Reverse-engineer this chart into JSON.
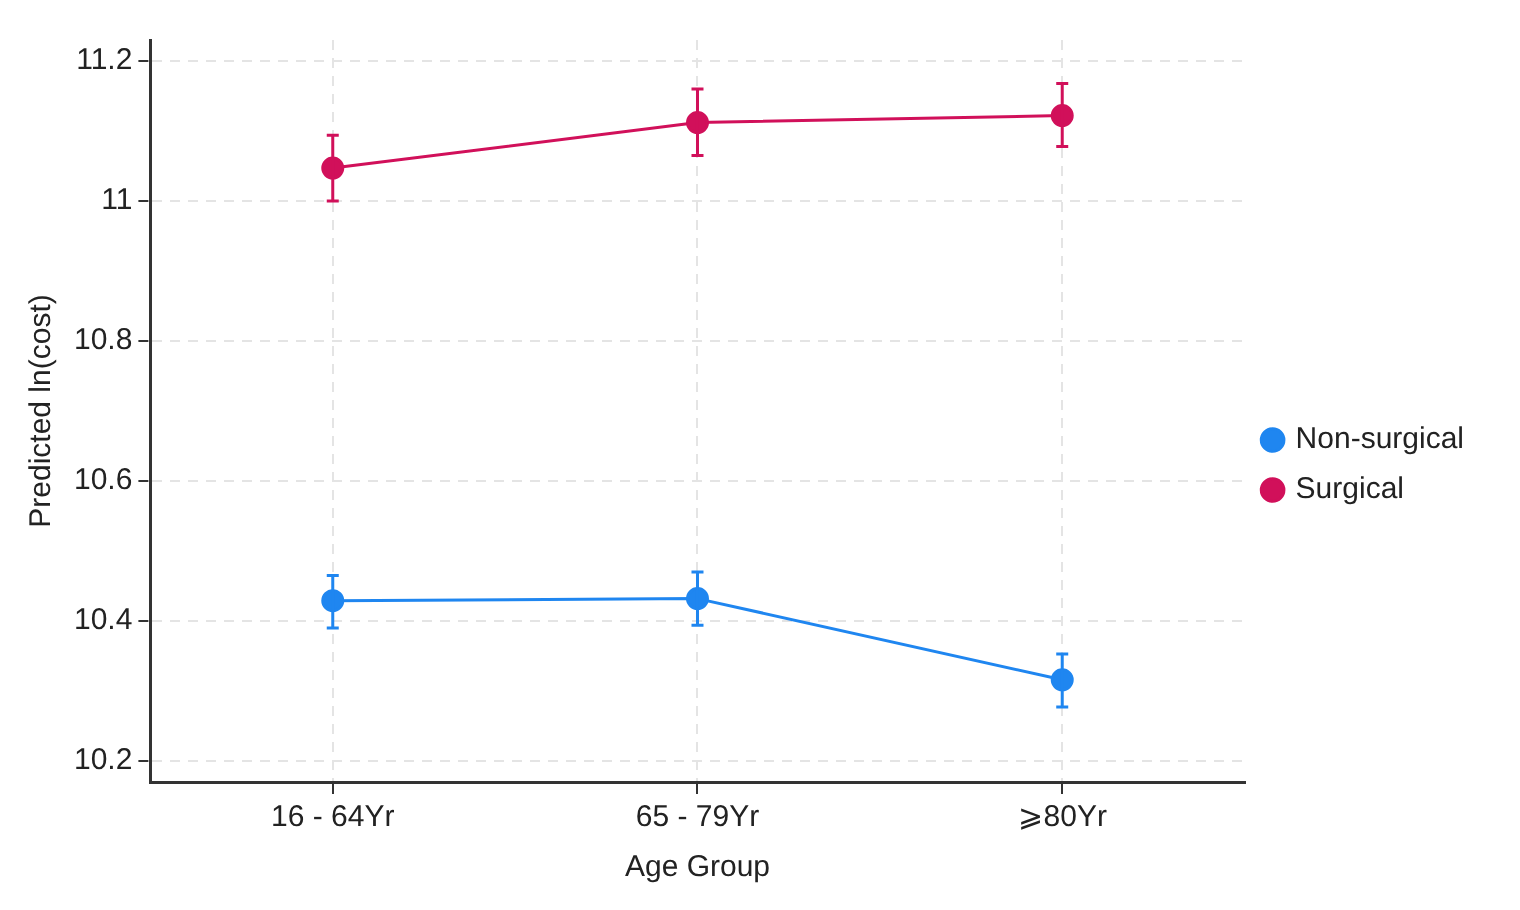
{
  "chart_data": {
    "type": "line",
    "xlabel": "Age Group",
    "ylabel": "Predicted ln(cost)",
    "categories": [
      "16 - 64Yr",
      "65 - 79Yr",
      "⩾80Yr"
    ],
    "series": [
      {
        "name": "Non-surgical",
        "color": "#1f86f0",
        "values": [
          10.429,
          10.432,
          10.316
        ],
        "errors": [
          [
            10.39,
            10.465
          ],
          [
            10.394,
            10.47
          ],
          [
            10.277,
            10.353
          ]
        ]
      },
      {
        "name": "Surgical",
        "color": "#d1105a",
        "values": [
          11.047,
          11.112,
          11.122
        ],
        "errors": [
          [
            11.0,
            11.094
          ],
          [
            11.065,
            11.16
          ],
          [
            11.078,
            11.168
          ]
        ]
      }
    ],
    "ylim": [
      10.17,
      11.23
    ],
    "yticks": [
      10.2,
      10.4,
      10.6,
      10.8,
      11,
      11.2
    ],
    "grid": true,
    "legend": "right",
    "marker": "circle",
    "line_style": "solid"
  }
}
